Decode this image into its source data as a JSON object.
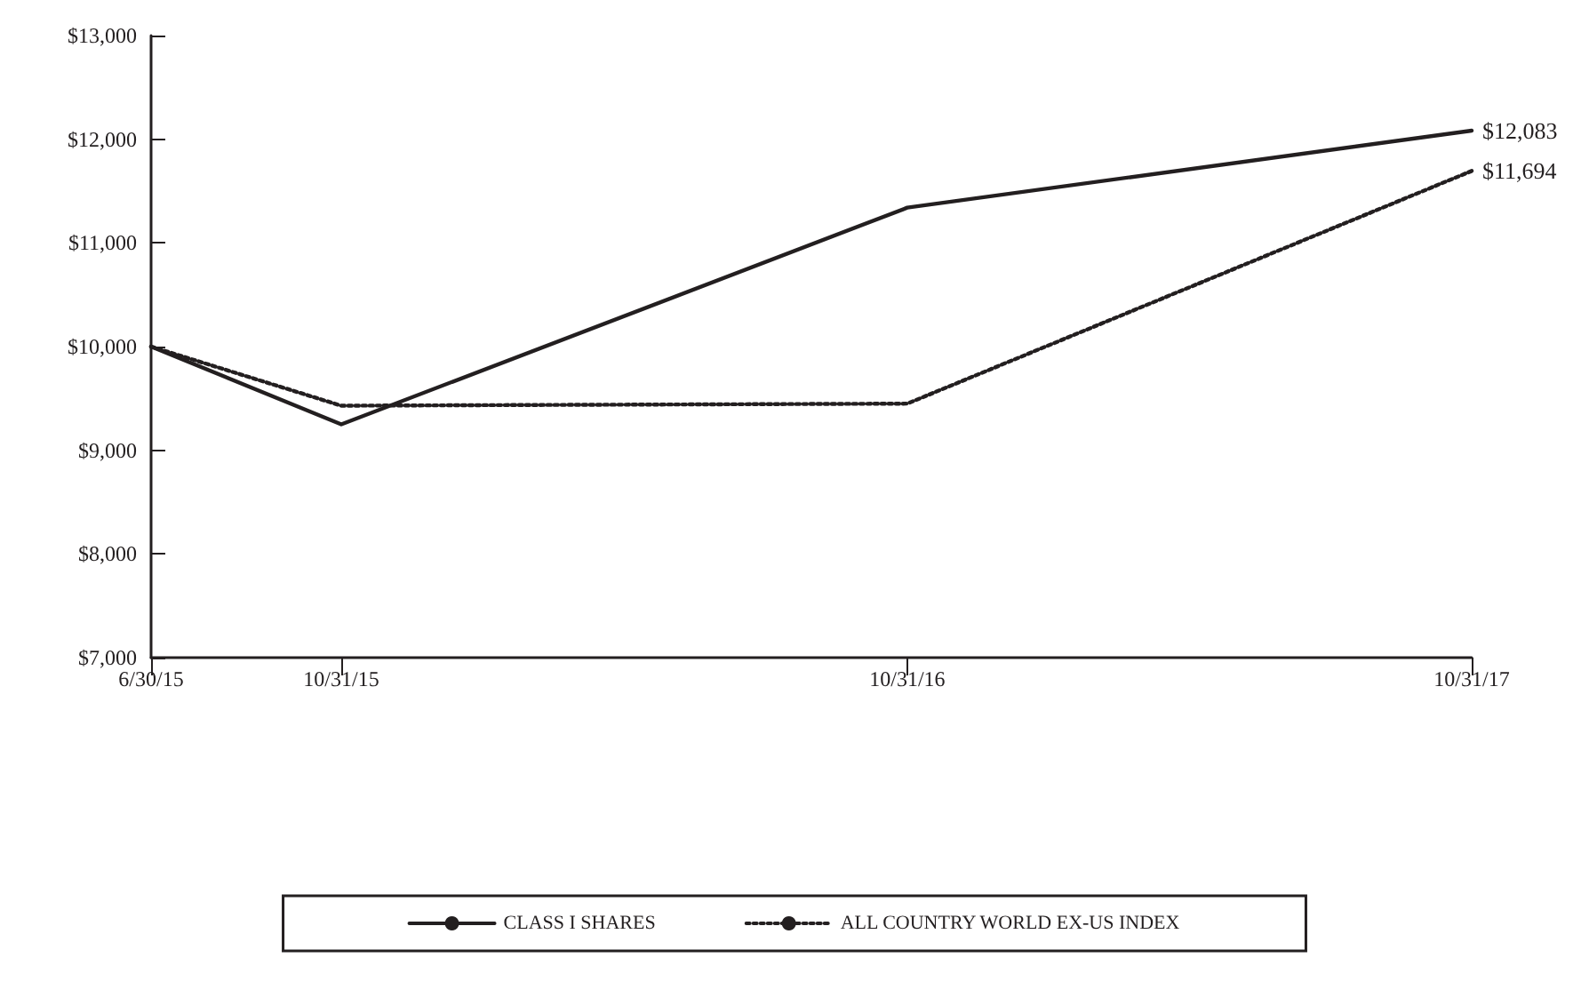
{
  "chart_data": {
    "type": "line",
    "x": [
      "2015-06-30",
      "2015-10-31",
      "2016-10-31",
      "2017-10-31"
    ],
    "xlim": [
      "2015-06-30",
      "2017-10-31"
    ],
    "xticks": [
      {
        "value": "2015-06-30",
        "label": "6/30/15"
      },
      {
        "value": "2015-10-31",
        "label": "10/31/15"
      },
      {
        "value": "2016-10-31",
        "label": "10/31/16"
      },
      {
        "value": "2017-10-31",
        "label": "10/31/17"
      }
    ],
    "ylim": [
      7000,
      13000
    ],
    "yticks": [
      {
        "value": 7000,
        "label": "$7,000"
      },
      {
        "value": 8000,
        "label": "$8,000"
      },
      {
        "value": 9000,
        "label": "$9,000"
      },
      {
        "value": 10000,
        "label": "$10,000"
      },
      {
        "value": 11000,
        "label": "$11,000"
      },
      {
        "value": 12000,
        "label": "$12,000"
      },
      {
        "value": 13000,
        "label": "$13,000"
      }
    ],
    "series": [
      {
        "name": "CLASS I SHARES",
        "color": "#231f20",
        "line_style": "solid",
        "values": [
          10000,
          9250,
          11340,
          12083
        ],
        "value_labels": [
          null,
          null,
          null,
          "$12,083"
        ]
      },
      {
        "name": "ALL COUNTRY WORLD EX-US INDEX",
        "color": "#231f20",
        "line_style": "dotted",
        "values": [
          10000,
          9430,
          9450,
          11694
        ],
        "value_labels": [
          null,
          null,
          null,
          "$11,694"
        ]
      }
    ],
    "grid": false,
    "legend": "bottom",
    "marker": "none"
  }
}
